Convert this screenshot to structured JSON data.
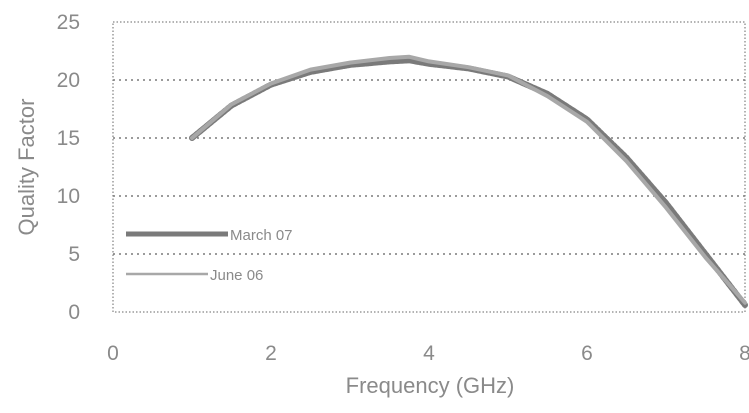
{
  "chart_data": {
    "type": "line",
    "title": "",
    "xlabel": "Frequency (GHz)",
    "ylabel": "Quality Factor",
    "xlim": [
      0,
      8
    ],
    "ylim": [
      0,
      25
    ],
    "x_ticks": [
      "0",
      "2",
      "4",
      "6",
      "8"
    ],
    "y_ticks": [
      "0",
      "5",
      "10",
      "15",
      "20",
      "25"
    ],
    "grid": "horizontal-dotted",
    "legend_position": "left",
    "series": [
      {
        "name": "March 07",
        "color": "#7a7a7a",
        "x": [
          1.0,
          1.5,
          2.0,
          2.5,
          3.0,
          3.5,
          3.75,
          4.0,
          4.5,
          5.0,
          5.5,
          6.0,
          6.5,
          7.0,
          7.5,
          8.0
        ],
        "y": [
          15.0,
          17.8,
          19.6,
          20.7,
          21.3,
          21.6,
          21.7,
          21.4,
          21.0,
          20.3,
          18.8,
          16.6,
          13.3,
          9.4,
          5.0,
          0.6
        ]
      },
      {
        "name": "June 06",
        "color": "#a8a8a8",
        "x": [
          1.0,
          1.5,
          2.0,
          2.5,
          3.0,
          3.5,
          3.75,
          4.0,
          4.5,
          5.0,
          5.5,
          6.0,
          6.5,
          7.0,
          7.5,
          8.0
        ],
        "y": [
          15.0,
          17.9,
          19.7,
          20.9,
          21.5,
          21.9,
          22.0,
          21.6,
          21.1,
          20.4,
          18.6,
          16.4,
          13.0,
          9.0,
          4.7,
          0.8
        ]
      }
    ]
  }
}
